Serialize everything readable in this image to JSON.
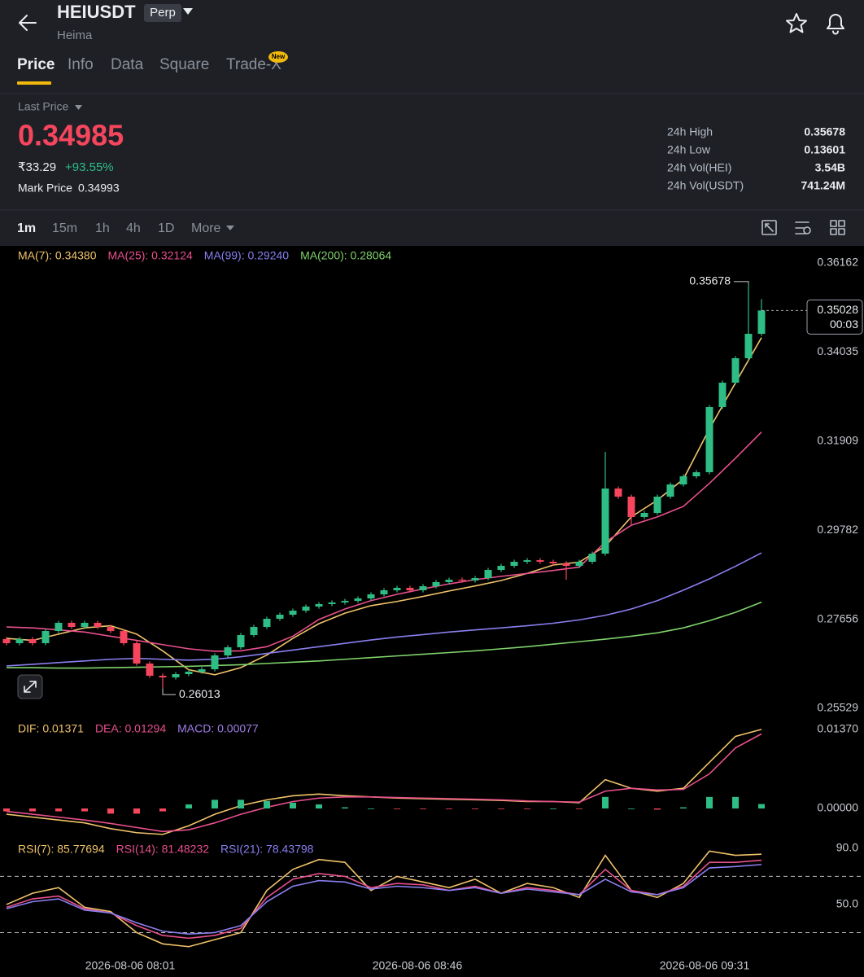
{
  "header": {
    "symbol": "HEIUSDT",
    "badge": "Perp",
    "name": "Heima"
  },
  "tabs": [
    "Price",
    "Info",
    "Data",
    "Square",
    "Trade-X"
  ],
  "tab_badge": "New",
  "price": {
    "label": "Last Price",
    "last": "0.34985",
    "fiat": "₹33.29",
    "change": "+93.55%",
    "mark_label": "Mark Price",
    "mark": "0.34993"
  },
  "stats": [
    {
      "label": "24h High",
      "value": "0.35678"
    },
    {
      "label": "24h Low",
      "value": "0.13601"
    },
    {
      "label": "24h Vol(HEI)",
      "value": "3.54B"
    },
    {
      "label": "24h Vol(USDT)",
      "value": "741.24M"
    }
  ],
  "intervals": [
    "1m",
    "15m",
    "1h",
    "4h",
    "1D",
    "More"
  ],
  "time_labels": [
    "2026-08-06 08:01",
    "2026-08-06 08:46",
    "2026-08-06 09:31"
  ],
  "chart_data": [
    {
      "type": "candlestick",
      "up_color": "#2ebd85",
      "down_color": "#f6465d",
      "ylim": [
        0.25237,
        0.36551
      ],
      "yticks": [
        0.36162,
        0.34035,
        0.31909,
        0.29782,
        0.27656,
        0.25529
      ],
      "grid": false,
      "countdown": "00:03",
      "open": [
        0.27181,
        0.27084,
        0.27181,
        0.27084,
        0.27375,
        0.2757,
        0.27472,
        0.2757,
        0.27472,
        0.27375,
        0.27084,
        0.26598,
        0.26306,
        0.26267,
        0.26345,
        0.26403,
        0.26461,
        0.26792,
        0.26986,
        0.27278,
        0.27472,
        0.27667,
        0.27764,
        0.27861,
        0.27958,
        0.28017,
        0.28056,
        0.28094,
        0.28153,
        0.2825,
        0.28347,
        0.28405,
        0.28347,
        0.28444,
        0.28542,
        0.286,
        0.2858,
        0.28639,
        0.28833,
        0.2893,
        0.29028,
        0.29066,
        0.29028,
        0.28989,
        0.2893,
        0.29028,
        0.29222,
        0.30777,
        0.30583,
        0.30097,
        0.30194,
        0.30583,
        0.30874,
        0.31069,
        0.31166,
        0.32721,
        0.33304,
        0.33888,
        0.34471
      ],
      "high": [
        0.27231,
        0.27231,
        0.27231,
        0.27425,
        0.2762,
        0.2762,
        0.2762,
        0.2762,
        0.27522,
        0.27425,
        0.27134,
        0.26648,
        0.26356,
        0.26395,
        0.26453,
        0.26511,
        0.26842,
        0.27036,
        0.27328,
        0.27522,
        0.27717,
        0.27814,
        0.27911,
        0.28008,
        0.28067,
        0.28106,
        0.28144,
        0.28203,
        0.283,
        0.28397,
        0.28455,
        0.28455,
        0.28494,
        0.28592,
        0.2865,
        0.2865,
        0.28689,
        0.28883,
        0.2898,
        0.29078,
        0.29116,
        0.29116,
        0.29078,
        0.29039,
        0.29078,
        0.29272,
        0.31652,
        0.30827,
        0.30633,
        0.30244,
        0.30633,
        0.30924,
        0.31119,
        0.31216,
        0.32771,
        0.33354,
        0.33938,
        0.35678,
        0.353
      ],
      "low": [
        0.27034,
        0.27034,
        0.27034,
        0.27034,
        0.27325,
        0.27422,
        0.27422,
        0.27422,
        0.27325,
        0.27034,
        0.26548,
        0.26256,
        0.26013,
        0.26217,
        0.26295,
        0.26353,
        0.26411,
        0.26742,
        0.26936,
        0.27228,
        0.27422,
        0.27617,
        0.27714,
        0.27811,
        0.27908,
        0.27967,
        0.28006,
        0.28044,
        0.28103,
        0.282,
        0.28297,
        0.28297,
        0.28297,
        0.28394,
        0.28492,
        0.2853,
        0.2853,
        0.28589,
        0.28783,
        0.2888,
        0.28978,
        0.28978,
        0.28939,
        0.286,
        0.2888,
        0.28978,
        0.29172,
        0.30533,
        0.299,
        0.30047,
        0.30144,
        0.30533,
        0.30824,
        0.31019,
        0.31116,
        0.32671,
        0.33254,
        0.33838,
        0.34421
      ],
      "close": [
        0.27084,
        0.27181,
        0.27084,
        0.27375,
        0.2757,
        0.27472,
        0.2757,
        0.27472,
        0.27375,
        0.27084,
        0.26598,
        0.26306,
        0.26267,
        0.26345,
        0.26403,
        0.26461,
        0.26792,
        0.26986,
        0.27278,
        0.27472,
        0.27667,
        0.27764,
        0.27861,
        0.27958,
        0.28017,
        0.28056,
        0.28094,
        0.28153,
        0.2825,
        0.28347,
        0.28405,
        0.28347,
        0.28444,
        0.28542,
        0.286,
        0.2858,
        0.28639,
        0.28833,
        0.2893,
        0.29028,
        0.29066,
        0.29028,
        0.28989,
        0.2893,
        0.29028,
        0.29222,
        0.30777,
        0.30583,
        0.30097,
        0.30194,
        0.30583,
        0.30874,
        0.31069,
        0.31166,
        0.32721,
        0.33304,
        0.33888,
        0.34471,
        0.35028
      ],
      "series": [
        {
          "name": "MA(7): 0.34380",
          "color": "#f0c36a",
          "values": [
            0.272,
            0.2715,
            0.273,
            0.2745,
            0.275,
            0.273,
            0.269,
            0.2645,
            0.2633,
            0.265,
            0.268,
            0.272,
            0.2755,
            0.278,
            0.2798,
            0.2808,
            0.282,
            0.2833,
            0.2845,
            0.2858,
            0.2875,
            0.2895,
            0.2902,
            0.294,
            0.301,
            0.305,
            0.31,
            0.322,
            0.333,
            0.3438
          ]
        },
        {
          "name": "MA(25): 0.32124",
          "color": "#e8508c",
          "values": [
            0.27472,
            0.2745,
            0.274,
            0.2735,
            0.2725,
            0.2715,
            0.2705,
            0.2695,
            0.2689,
            0.269,
            0.27,
            0.2725,
            0.2765,
            0.279,
            0.281,
            0.2825,
            0.2838,
            0.285,
            0.286,
            0.2868,
            0.2875,
            0.2882,
            0.289,
            0.295,
            0.299,
            0.301,
            0.3035,
            0.309,
            0.315,
            0.32124
          ]
        },
        {
          "name": "MA(99): 0.29240",
          "color": "#8a7ff0",
          "values": [
            0.2654,
            0.2658,
            0.2662,
            0.2666,
            0.267,
            0.2672,
            0.267,
            0.2668,
            0.267,
            0.2676,
            0.2684,
            0.2692,
            0.27,
            0.2708,
            0.2716,
            0.2723,
            0.2729,
            0.2735,
            0.274,
            0.2745,
            0.275,
            0.2756,
            0.2764,
            0.2775,
            0.279,
            0.281,
            0.2835,
            0.2862,
            0.2892,
            0.2924
          ]
        },
        {
          "name": "MA(200): 0.28064",
          "color": "#7fd36b",
          "values": [
            0.265,
            0.265,
            0.2649,
            0.2649,
            0.265,
            0.2651,
            0.2652,
            0.2653,
            0.2655,
            0.2657,
            0.266,
            0.2663,
            0.2666,
            0.267,
            0.2674,
            0.2678,
            0.2682,
            0.2686,
            0.269,
            0.2695,
            0.27,
            0.2706,
            0.2712,
            0.2718,
            0.2725,
            0.2733,
            0.2745,
            0.2762,
            0.2782,
            0.28064
          ]
        }
      ]
    },
    {
      "type": "macd",
      "ylim": [
        -0.00593,
        0.01525
      ],
      "yticks": [
        {
          "value": 0.0137,
          "label": "0.01370"
        },
        {
          "value": 0,
          "label": "0.00000"
        }
      ],
      "up_color": "#2ebd85",
      "down_color": "#f6465d",
      "series": [
        {
          "name": "DIF: 0.01371",
          "color": "#f0c36a",
          "values": [
            -0.001,
            -0.0015,
            -0.002,
            -0.0025,
            -0.0035,
            -0.0042,
            -0.0045,
            -0.003,
            -0.001,
            0.0005,
            0.0015,
            0.0022,
            0.0025,
            0.0022,
            0.002,
            0.0018,
            0.0017,
            0.0016,
            0.0015,
            0.0014,
            0.0012,
            0.0012,
            0.001,
            0.005,
            0.0035,
            0.003,
            0.0035,
            0.008,
            0.0125,
            0.01371
          ]
        },
        {
          "name": "DEA: 0.01294",
          "color": "#e8508c",
          "values": [
            -0.0005,
            -0.001,
            -0.0015,
            -0.002,
            -0.0026,
            -0.0033,
            -0.004,
            -0.0037,
            -0.0025,
            -0.001,
            0.0002,
            0.0012,
            0.0018,
            0.002,
            0.002,
            0.0019,
            0.0018,
            0.0017,
            0.0016,
            0.0015,
            0.0013,
            0.0012,
            0.0011,
            0.003,
            0.0035,
            0.0032,
            0.0033,
            0.006,
            0.0105,
            0.01294
          ]
        },
        {
          "name": "MACD: 0.00077",
          "color": "#a07ce8",
          "bars": true,
          "values": [
            -0.0005,
            -0.0005,
            -0.0005,
            -0.0005,
            -0.0009,
            -0.0009,
            -0.0005,
            0.0007,
            0.0015,
            0.0015,
            0.0013,
            0.001,
            0.0007,
            0.0002,
            0,
            -0.0001,
            -0.0001,
            -0.0001,
            -0.0001,
            -0.0001,
            -0.0001,
            0,
            -0.0001,
            0.002,
            0,
            -0.0002,
            0.0002,
            0.002,
            0.002,
            0.00077
          ]
        }
      ]
    },
    {
      "type": "line",
      "ylim": [
        10,
        94
      ],
      "yticks": [
        {
          "value": 90,
          "label": "90.0"
        },
        {
          "value": 50,
          "label": "50.0"
        }
      ],
      "reference_lines": [
        70,
        30
      ],
      "series": [
        {
          "name": "RSI(7): 85.77694",
          "color": "#f0c36a",
          "values": [
            50,
            58,
            62,
            48,
            45,
            30,
            22,
            20,
            25,
            30,
            60,
            75,
            82,
            80,
            60,
            70,
            66,
            62,
            68,
            58,
            65,
            62,
            55,
            85,
            60,
            55,
            65,
            88,
            85,
            85.77694
          ]
        },
        {
          "name": "RSI(14): 81.48232",
          "color": "#e8508c",
          "values": [
            48,
            54,
            56,
            47,
            44,
            35,
            28,
            26,
            28,
            33,
            55,
            68,
            72,
            70,
            62,
            65,
            64,
            60,
            63,
            58,
            62,
            60,
            57,
            75,
            60,
            57,
            63,
            80,
            80,
            81.48232
          ]
        },
        {
          "name": "RSI(21): 78.43798",
          "color": "#8a7ff0",
          "values": [
            47,
            52,
            54,
            46,
            44,
            37,
            31,
            29,
            30,
            35,
            52,
            63,
            67,
            66,
            61,
            63,
            62,
            60,
            62,
            58,
            61,
            59,
            57,
            68,
            59,
            57,
            62,
            76,
            77,
            78.43798
          ]
        }
      ]
    }
  ]
}
